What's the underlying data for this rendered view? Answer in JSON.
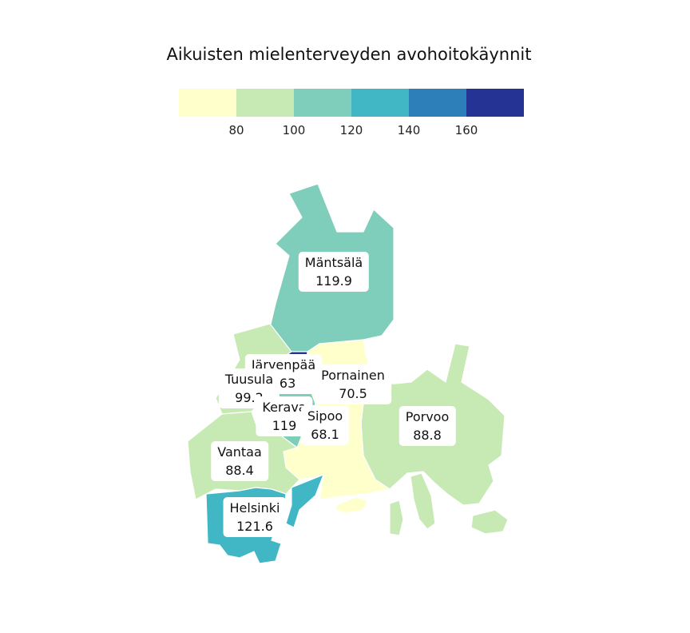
{
  "title": "Aikuisten mielenterveyden avohoitokäynnit",
  "legend": {
    "colors": [
      "#ffffcc",
      "#c7e9b4",
      "#7fcdbb",
      "#41b6c4",
      "#2c7fb8",
      "#253494"
    ],
    "ticks": [
      "80",
      "100",
      "120",
      "140",
      "160"
    ]
  },
  "regions": [
    {
      "name": "Mäntsälä",
      "value": "119.9",
      "color": "#7fcdbb"
    },
    {
      "name": "Järvenpää",
      "value": "163",
      "color": "#253494"
    },
    {
      "name": "Pornainen",
      "value": "70.5",
      "color": "#ffffcc"
    },
    {
      "name": "Tuusula",
      "value": "99.2",
      "color": "#c7e9b4"
    },
    {
      "name": "Kerava",
      "value": "119",
      "color": "#7fcdbb"
    },
    {
      "name": "Sipoo",
      "value": "68.1",
      "color": "#ffffcc"
    },
    {
      "name": "Porvoo",
      "value": "88.8",
      "color": "#c7e9b4"
    },
    {
      "name": "Vantaa",
      "value": "88.4",
      "color": "#c7e9b4"
    },
    {
      "name": "Helsinki",
      "value": "121.6",
      "color": "#41b6c4"
    }
  ]
}
